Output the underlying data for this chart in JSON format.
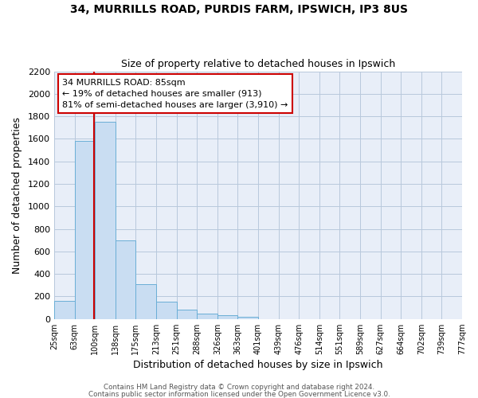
{
  "title1": "34, MURRILLS ROAD, PURDIS FARM, IPSWICH, IP3 8US",
  "title2": "Size of property relative to detached houses in Ipswich",
  "xlabel": "Distribution of detached houses by size in Ipswich",
  "ylabel": "Number of detached properties",
  "bar_values": [
    160,
    1580,
    1750,
    700,
    310,
    155,
    80,
    45,
    30,
    20,
    0,
    0,
    0,
    0,
    0,
    0,
    0,
    0,
    0,
    0
  ],
  "bin_labels": [
    "25sqm",
    "63sqm",
    "100sqm",
    "138sqm",
    "175sqm",
    "213sqm",
    "251sqm",
    "288sqm",
    "326sqm",
    "363sqm",
    "401sqm",
    "439sqm",
    "476sqm",
    "514sqm",
    "551sqm",
    "589sqm",
    "627sqm",
    "664sqm",
    "702sqm",
    "739sqm",
    "777sqm"
  ],
  "bar_color": "#c9ddf2",
  "bar_edge_color": "#6aaed6",
  "background_color": "#ffffff",
  "plot_bg_color": "#e8eef8",
  "grid_color": "#b8c8dc",
  "red_line_x": 1.97,
  "red_line_color": "#cc0000",
  "annotation_text": "34 MURRILLS ROAD: 85sqm\n← 19% of detached houses are smaller (913)\n81% of semi-detached houses are larger (3,910) →",
  "ylim": [
    0,
    2200
  ],
  "yticks": [
    0,
    200,
    400,
    600,
    800,
    1000,
    1200,
    1400,
    1600,
    1800,
    2000,
    2200
  ],
  "footer1": "Contains HM Land Registry data © Crown copyright and database right 2024.",
  "footer2": "Contains public sector information licensed under the Open Government Licence v3.0."
}
